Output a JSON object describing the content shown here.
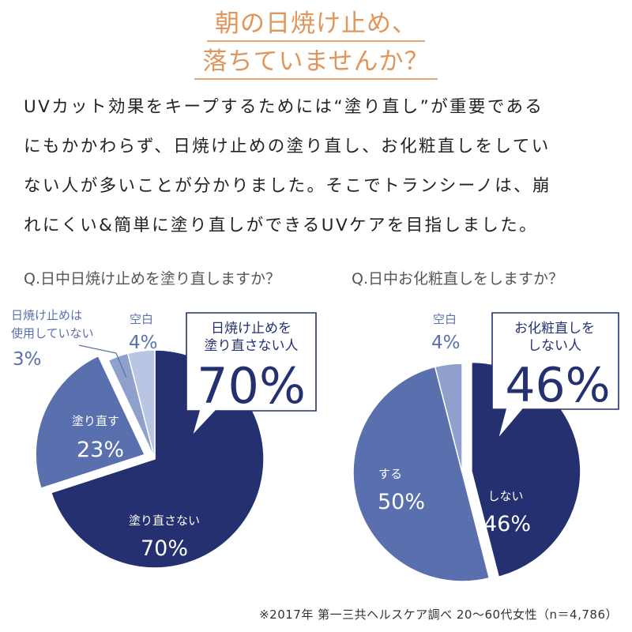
{
  "title": {
    "line1": "朝の日焼け止め、",
    "line2": "落ちていませんか？"
  },
  "intro": [
    "UVカット効果をキープするためには“塗り直し”が重要である",
    "にもかかわらず、日焼け止めの塗り直し、お化粧直しをしてい",
    "ない人が多いことが分かりました。そこでトランシーノは、崩",
    "れにくい&簡単に塗り直しができるUVケアを目指しました。"
  ],
  "colors": {
    "dark": "#24306f",
    "mid": "#5a6fae",
    "light": "#8fa0cc",
    "pale": "#b9c5e3",
    "title": "#e0955a"
  },
  "chart_data": [
    {
      "type": "pie",
      "title": "Q.日中日焼け止めを塗り直しますか？",
      "slices": [
        {
          "label": "塗り直さない",
          "value": 70,
          "display": "70%",
          "color": "#24306f"
        },
        {
          "label": "塗り直す",
          "value": 23,
          "display": "23%",
          "color": "#5a6fae"
        },
        {
          "label": "日焼け止めは使用していない",
          "label_lines": [
            "日焼け止めは",
            "使用していない"
          ],
          "value": 3,
          "display": "3%",
          "color": "#8fa0cc"
        },
        {
          "label": "空白",
          "value": 4,
          "display": "4%",
          "color": "#b9c5e3"
        }
      ],
      "callout": {
        "lines": [
          "日焼け止めを",
          "塗り直さない人"
        ],
        "value": "70%"
      }
    },
    {
      "type": "pie",
      "title": "Q.日中お化粧直しをしますか？",
      "slices": [
        {
          "label": "しない",
          "value": 46,
          "display": "46%",
          "color": "#24306f"
        },
        {
          "label": "する",
          "value": 50,
          "display": "50%",
          "color": "#5a6fae"
        },
        {
          "label": "空白",
          "value": 4,
          "display": "4%",
          "color": "#8fa0cc"
        }
      ],
      "callout": {
        "lines": [
          "お化粧直しを",
          "しない人"
        ],
        "value": "46%"
      }
    }
  ],
  "footnote": "※2017年 第一三共ヘルスケア調べ 20〜60代女性（n＝4,786）"
}
